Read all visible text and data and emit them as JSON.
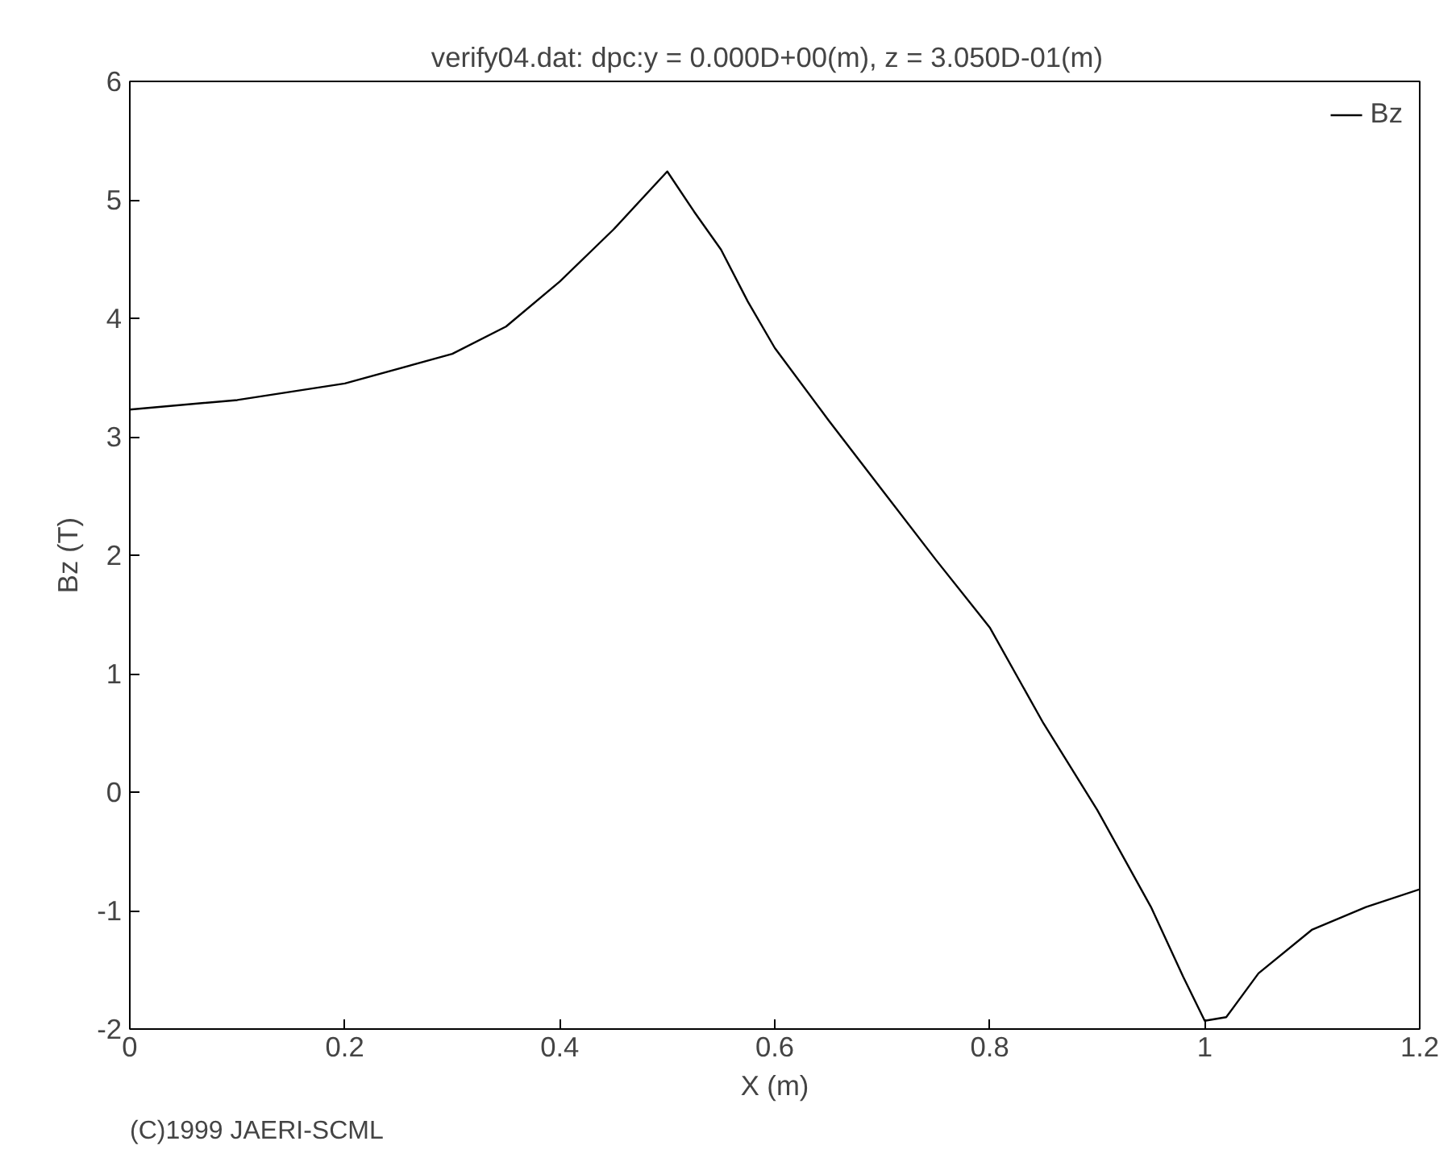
{
  "chart_data": {
    "type": "line",
    "title": "verify04.dat: dpc:y =  0.000D+00(m), z =  3.050D-01(m)",
    "xlabel": "X (m)",
    "ylabel": "Bz (T)",
    "x": [
      0,
      0.1,
      0.2,
      0.3,
      0.35,
      0.4,
      0.45,
      0.5,
      0.525,
      0.55,
      0.575,
      0.6,
      0.65,
      0.7,
      0.75,
      0.8,
      0.85,
      0.9,
      0.95,
      0.98,
      1.0,
      1.02,
      1.05,
      1.1,
      1.15,
      1.2
    ],
    "series": [
      {
        "name": "Bz",
        "color": "#000000",
        "values": [
          3.23,
          3.31,
          3.45,
          3.7,
          3.93,
          4.31,
          4.75,
          5.24,
          4.9,
          4.58,
          4.14,
          3.75,
          3.14,
          2.55,
          1.96,
          1.39,
          0.58,
          -0.15,
          -0.97,
          -1.56,
          -1.93,
          -1.9,
          -1.53,
          -1.16,
          -0.97,
          -0.82
        ]
      }
    ],
    "xlim": [
      0,
      1.2
    ],
    "ylim": [
      -2,
      6
    ],
    "xticks": [
      0,
      0.2,
      0.4,
      0.6,
      0.8,
      1,
      1.2
    ],
    "yticks": [
      -2,
      -1,
      0,
      1,
      2,
      3,
      4,
      5,
      6
    ],
    "grid": false,
    "legend": "top right",
    "line_style": "solid",
    "marker": "none",
    "annotations": [
      "(C)1999 JAERI-SCML"
    ]
  }
}
